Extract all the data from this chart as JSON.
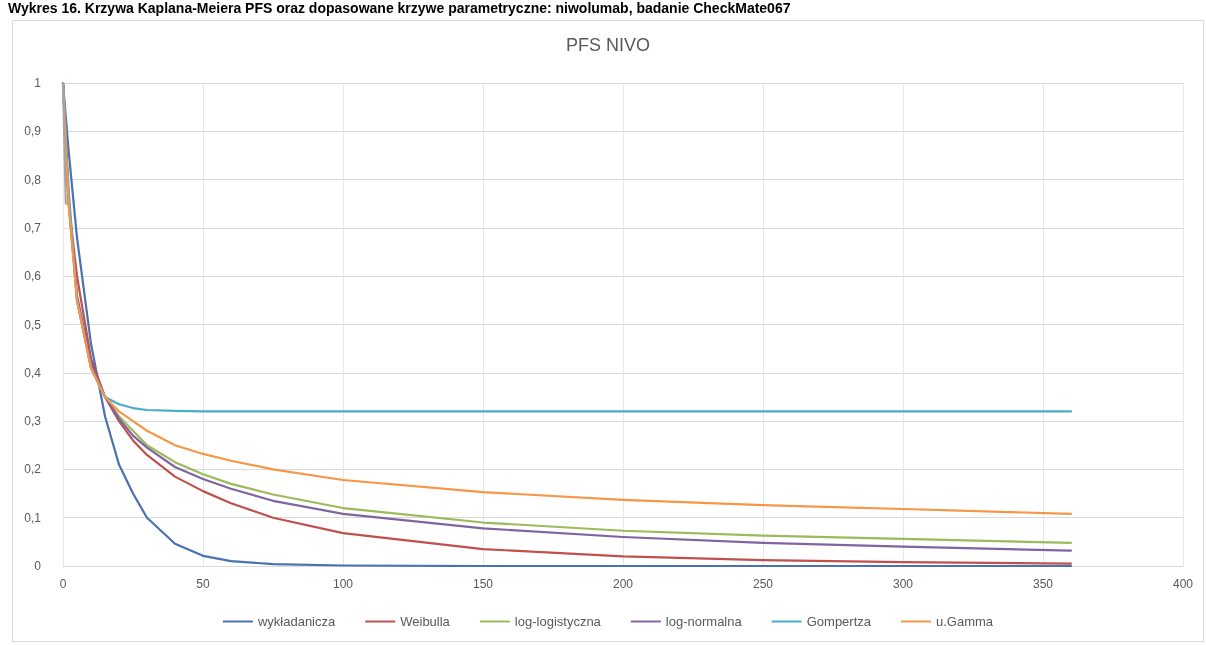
{
  "chart_data": {
    "type": "line",
    "title": "Wykres 16. Krzywa Kaplana-Meiera PFS oraz dopasowane krzywe parametryczne: niwolumab, badanie CheckMate067",
    "subtitle": "PFS NIVO",
    "x": [
      0,
      2,
      5,
      10,
      15,
      20,
      25,
      30,
      40,
      50,
      60,
      75,
      100,
      150,
      200,
      250,
      300,
      360
    ],
    "series": [
      {
        "name": "wykładanicza",
        "color": "#4a72b0",
        "values": [
          1,
          0.86,
          0.68,
          0.46,
          0.31,
          0.21,
          0.15,
          0.1,
          0.046,
          0.021,
          0.01,
          0.004,
          0.001,
          0,
          0,
          0,
          0,
          0
        ]
      },
      {
        "name": "Weibulla",
        "color": "#c0504d",
        "values": [
          1,
          0.75,
          0.6,
          0.43,
          0.35,
          0.3,
          0.26,
          0.23,
          0.185,
          0.155,
          0.13,
          0.1,
          0.068,
          0.035,
          0.02,
          0.012,
          0.008,
          0.005
        ]
      },
      {
        "name": "log-logistyczna",
        "color": "#9bbb59",
        "values": [
          1,
          0.75,
          0.55,
          0.41,
          0.35,
          0.31,
          0.28,
          0.25,
          0.215,
          0.19,
          0.17,
          0.148,
          0.12,
          0.09,
          0.073,
          0.063,
          0.056,
          0.048
        ]
      },
      {
        "name": "log-normalna",
        "color": "#8064a2",
        "values": [
          1,
          0.76,
          0.56,
          0.42,
          0.35,
          0.305,
          0.27,
          0.245,
          0.205,
          0.18,
          0.16,
          0.135,
          0.108,
          0.078,
          0.06,
          0.048,
          0.04,
          0.032
        ]
      },
      {
        "name": "Gompertza",
        "color": "#4bacc6",
        "values": [
          1,
          0.78,
          0.55,
          0.41,
          0.35,
          0.335,
          0.327,
          0.323,
          0.321,
          0.32,
          0.32,
          0.32,
          0.32,
          0.32,
          0.32,
          0.32,
          0.32,
          0.32
        ]
      },
      {
        "name": "u.Gamma",
        "color": "#f79646",
        "values": [
          1,
          0.75,
          0.55,
          0.41,
          0.35,
          0.32,
          0.3,
          0.28,
          0.25,
          0.232,
          0.218,
          0.2,
          0.178,
          0.153,
          0.137,
          0.126,
          0.118,
          0.108
        ]
      },
      {
        "color": "#a5a5a5",
        "x": [
          0,
          1
        ],
        "values": [
          1,
          0.75
        ]
      }
    ],
    "xlim": [
      0,
      400
    ],
    "xticks": [
      0,
      50,
      100,
      150,
      200,
      250,
      300,
      350,
      400
    ],
    "ylim": [
      0,
      1
    ],
    "yticks": [
      0,
      {
        "value": 0.1,
        "label": "0,1"
      },
      {
        "value": 0.2,
        "label": "0,2"
      },
      {
        "value": 0.3,
        "label": "0,3"
      },
      {
        "value": 0.4,
        "label": "0,4"
      },
      {
        "value": 0.5,
        "label": "0,5"
      },
      {
        "value": 0.6,
        "label": "0,6"
      },
      {
        "value": 0.7,
        "label": "0,7"
      },
      {
        "value": 0.8,
        "label": "0,8"
      },
      {
        "value": 0.9,
        "label": "0,9"
      },
      1
    ],
    "grid": true,
    "legend": "bottom",
    "marker": "none",
    "line_style": "solid"
  }
}
